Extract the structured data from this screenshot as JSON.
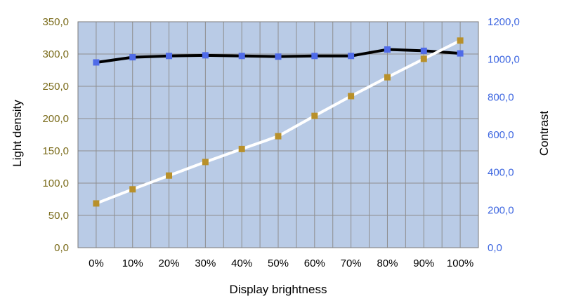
{
  "chart_data": {
    "type": "line",
    "xlabel": "Display brightness",
    "ylabel_left": "Light density",
    "ylabel_right": "Contrast",
    "categories": [
      "0%",
      "10%",
      "20%",
      "30%",
      "40%",
      "50%",
      "60%",
      "70%",
      "80%",
      "90%",
      "100%"
    ],
    "ylim_left": [
      0,
      350
    ],
    "ylim_right": [
      0,
      1200
    ],
    "yticks_left": [
      "0,0",
      "50,0",
      "100,0",
      "150,0",
      "200,0",
      "250,0",
      "300,0",
      "350,0"
    ],
    "yticks_right": [
      "0,0",
      "200,0",
      "400,0",
      "600,0",
      "800,0",
      "1000,0",
      "1200,0"
    ],
    "grid": true,
    "series": [
      {
        "axis": "left",
        "values": [
          287,
          295,
          297,
          298,
          297,
          296,
          297,
          297,
          307,
          305,
          301
        ],
        "line_color": "#000000",
        "marker_color": "#4f6be8"
      },
      {
        "axis": "right",
        "values": [
          235,
          310,
          383,
          455,
          524,
          592,
          700,
          805,
          905,
          1003,
          1100
        ],
        "line_color": "#ffffff",
        "marker_color": "#b8902a"
      }
    ],
    "colors": {
      "plot_background": "#b9cbe6",
      "grid": "#8e8e8e",
      "left_axis_text": "#7a6b1a",
      "right_axis_text": "#3d66e0"
    }
  }
}
